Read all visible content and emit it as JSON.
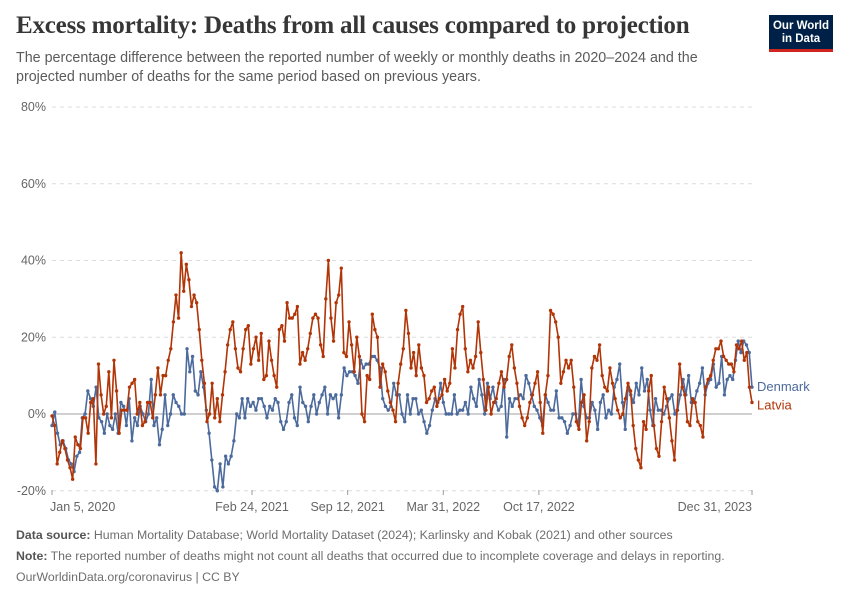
{
  "header": {
    "title": "Excess mortality: Deaths from all causes compared to projection",
    "subtitle": "The percentage difference between the reported number of weekly or monthly deaths in 2020–2024 and the projected number of deaths for the same period based on previous years.",
    "logo_line1": "Our World",
    "logo_line2": "in Data"
  },
  "footer": {
    "source_label": "Data source:",
    "source_text": " Human Mortality Database; World Mortality Dataset (2024); Karlinsky and Kobak (2021) and other sources",
    "note_label": "Note:",
    "note_text": " The reported number of deaths might not count all deaths that occurred due to incomplete coverage and delays in reporting.",
    "url": "OurWorldinData.org/coronavirus | CC BY"
  },
  "chart_data": {
    "type": "line",
    "title": "Excess mortality: Deaths from all causes compared to projection",
    "xlabel": "",
    "ylabel": "",
    "x_start": "2020-01-05",
    "x_end": "2023-12-31",
    "x_interval": "weekly",
    "ylim": [
      -20,
      80
    ],
    "yticks": [
      -20,
      0,
      20,
      40,
      60,
      80
    ],
    "ytick_labels": [
      "-20%",
      "0%",
      "20%",
      "40%",
      "60%",
      "80%"
    ],
    "xtick_labels": [
      "Jan 5, 2020",
      "Feb 24, 2021",
      "Sep 12, 2021",
      "Mar 31, 2022",
      "Oct 17, 2022",
      "Dec 31, 2023"
    ],
    "xtick_weeks": [
      0,
      59.6,
      88.1,
      116.6,
      145.1,
      208.6
    ],
    "grid": true,
    "legend": "right-end-labels",
    "series": [
      {
        "name": "Denmark",
        "color": "#4c6a9c",
        "values": [
          -3,
          0.5,
          -5,
          -8,
          -7,
          -9,
          -12,
          -13,
          -15,
          -11,
          -10,
          -1,
          0,
          6,
          4,
          2,
          7,
          -1,
          -2,
          -5,
          0,
          -3,
          -4,
          0,
          -5,
          3,
          2,
          -3,
          4,
          -7,
          -1,
          -3,
          2,
          0,
          -2,
          0,
          9,
          -3,
          -1,
          -8,
          -4,
          5,
          -3,
          0,
          5,
          3,
          2,
          0,
          0,
          17,
          11,
          15,
          6,
          5,
          11,
          7,
          1,
          -5,
          -12,
          -19,
          -20,
          -13,
          -19,
          -11,
          -13,
          -11,
          -7,
          0,
          -1,
          4,
          -1,
          4,
          2,
          3,
          1,
          4,
          4,
          2,
          -1,
          2,
          1,
          4,
          3,
          -2,
          -4,
          -2,
          3,
          5,
          -1,
          -3,
          7,
          3,
          2,
          -2,
          2,
          5,
          0,
          3,
          5,
          7,
          0,
          5,
          4,
          5,
          -1,
          5,
          12,
          10,
          11,
          11,
          10,
          8,
          14,
          12,
          13,
          13,
          15,
          15,
          14,
          12,
          4,
          2,
          1,
          2,
          8,
          5,
          5,
          0,
          -2,
          5,
          0,
          4,
          4,
          0,
          1,
          -2,
          -5,
          -3,
          1,
          4,
          3,
          8,
          3,
          0,
          0,
          0,
          5,
          0,
          1,
          1,
          3,
          0,
          7,
          4,
          2,
          9,
          5,
          0,
          8,
          4,
          7,
          3,
          1,
          2,
          9,
          -6,
          4,
          2,
          4,
          4,
          5,
          4,
          10,
          8,
          5,
          2,
          1,
          -1,
          -3,
          5,
          3,
          1,
          1,
          6,
          -1,
          -1,
          -2,
          -5,
          -3,
          0,
          0,
          -3,
          9,
          2,
          -1,
          -1,
          3,
          1,
          -4,
          3,
          5,
          -1,
          1,
          0,
          7,
          9,
          13,
          3,
          -4,
          7,
          5,
          3,
          8,
          5,
          12,
          6,
          9,
          1,
          -3,
          4,
          1,
          1,
          0,
          2,
          4,
          5,
          0,
          1,
          5,
          9,
          5,
          10,
          3,
          3,
          6,
          8,
          12,
          5,
          8,
          9,
          13,
          7,
          8,
          15,
          5,
          9,
          10,
          9,
          14,
          19,
          16,
          19,
          18,
          16,
          7
        ]
      },
      {
        "name": "Latvia",
        "color": "#b13507",
        "values": [
          -0.5,
          -3,
          -13,
          -10,
          -7,
          -9,
          -12,
          -14,
          -17,
          -6,
          -8,
          -9,
          -1,
          -1,
          -5,
          3,
          4,
          -13,
          13,
          5,
          0,
          2,
          11,
          -1,
          14,
          6,
          -5,
          1,
          1,
          1,
          7,
          8,
          9,
          0,
          3,
          -3,
          -2,
          3,
          3,
          -1,
          5,
          12,
          5,
          10,
          10,
          14,
          17,
          24,
          31,
          25,
          42,
          32,
          39,
          35,
          28,
          31,
          29,
          22,
          14,
          8,
          -2,
          0,
          8,
          -1,
          4,
          -2,
          5,
          11,
          18,
          22,
          24,
          17,
          12,
          11,
          17,
          22,
          23,
          13,
          17,
          20,
          14,
          21,
          9,
          10,
          19,
          14,
          10,
          7,
          22,
          23,
          19,
          29,
          25,
          25,
          26,
          28,
          13,
          16,
          14,
          17,
          21,
          25,
          26,
          25,
          18,
          15,
          30,
          40,
          25,
          19,
          29,
          31,
          38,
          16,
          15,
          24,
          18,
          11,
          20,
          15,
          0,
          -2,
          10,
          9,
          26,
          22,
          20,
          7,
          13,
          11,
          6,
          3,
          1,
          -2,
          8,
          13,
          17,
          27,
          21,
          12,
          16,
          10,
          18,
          12,
          10,
          3,
          4,
          6,
          7,
          2,
          4,
          5,
          9,
          6,
          8,
          17,
          12,
          22,
          26,
          28,
          17,
          11,
          14,
          12,
          15,
          24,
          16,
          9,
          1,
          7,
          0,
          3,
          4,
          8,
          11,
          7,
          9,
          15,
          18,
          12,
          8,
          2,
          -1,
          -3,
          -1,
          3,
          5,
          8,
          11,
          3,
          -5,
          5,
          10,
          27,
          26,
          24,
          20,
          8,
          11,
          14,
          12,
          14,
          7,
          -2,
          -4,
          3,
          5,
          -7,
          -2,
          12,
          15,
          14,
          18,
          10,
          7,
          6,
          12,
          8,
          4,
          1,
          -1,
          0,
          4,
          8,
          6,
          -3,
          -9,
          -12,
          -14,
          -2,
          -4,
          6,
          10,
          -3,
          -9,
          -11,
          -2,
          7,
          4,
          -1,
          -7,
          -12,
          1,
          13,
          7,
          5,
          -2,
          -3,
          4,
          3,
          -2,
          -3,
          -6,
          7,
          9,
          10,
          14,
          17,
          17,
          19,
          15,
          14,
          13,
          13,
          11,
          18,
          17,
          19,
          14,
          16,
          7,
          3
        ]
      }
    ]
  }
}
